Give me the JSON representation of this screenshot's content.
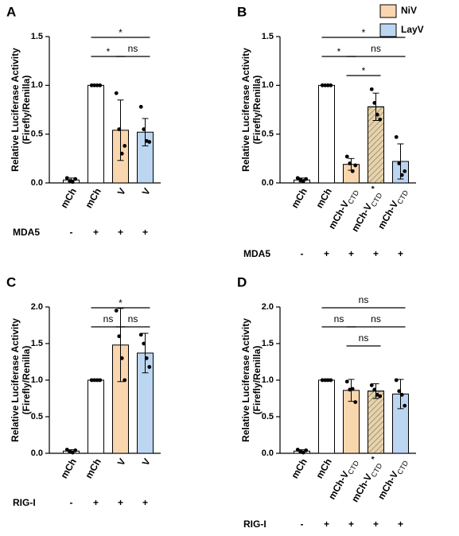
{
  "chart_data": [
    {
      "type": "bar",
      "panel": "A",
      "ylabel": [
        "Relative Luciferase Activity",
        "(Firefly/Renilla)"
      ],
      "categories": [
        "mCh",
        "mCh",
        "V",
        "V"
      ],
      "values": [
        0.03,
        1.0,
        0.54,
        0.52
      ],
      "errors": [
        0.02,
        0,
        0.31,
        0.14
      ],
      "points": [
        [
          0.05,
          0.02,
          0.01,
          0.04
        ],
        [
          1,
          1,
          1,
          1
        ],
        [
          0.92,
          0.55,
          0.3,
          0.38
        ],
        [
          0.78,
          0.55,
          0.43,
          0.42
        ]
      ],
      "colors": [
        "#ffffff",
        "#ffffff",
        "#fad6ae",
        "#bcd6f2"
      ],
      "hatch": [
        false,
        false,
        false,
        false
      ],
      "ylim": [
        0,
        1.5
      ],
      "yticks": [
        {
          "value": 0,
          "label": "0.0"
        },
        0.5,
        {
          "value": 1,
          "label": "1.0"
        },
        1.5
      ],
      "condition": {
        "label": "MDA5",
        "signs": [
          "-",
          "+",
          "+",
          "+"
        ]
      },
      "brackets": [
        {
          "from": 1,
          "to": 3,
          "label": "*"
        },
        {
          "from": 1,
          "to": 2,
          "label": "*"
        },
        {
          "from": 2,
          "to": 3,
          "label": "ns"
        }
      ]
    },
    {
      "type": "bar",
      "panel": "B",
      "ylabel": [
        "Relative Luciferase Activity",
        "(Firefly/Renilla)"
      ],
      "categories": [
        "mCh",
        "mCh",
        {
          "label": "mCh-V",
          "subscript": "CTD"
        },
        {
          "label": "mCh-V",
          "subscript": "CTD",
          "suffix": "*"
        },
        {
          "label": "mCh-V",
          "subscript": "CTD"
        }
      ],
      "values": [
        0.03,
        1.0,
        0.19,
        0.78,
        0.22
      ],
      "errors": [
        0.02,
        0,
        0.06,
        0.14,
        0.18
      ],
      "points": [
        [
          0.05,
          0.03,
          0.02,
          0.04
        ],
        [
          1,
          1,
          1,
          1
        ],
        [
          0.27,
          0.2,
          0.12,
          0.18
        ],
        [
          0.96,
          0.82,
          0.7,
          0.65
        ],
        [
          0.47,
          0.2,
          0.08,
          0.12
        ]
      ],
      "colors": [
        "#ffffff",
        "#ffffff",
        "#fad6ae",
        "#e6d3ad",
        "#bcd6f2"
      ],
      "hatch": [
        false,
        false,
        false,
        true,
        false
      ],
      "ylim": [
        0,
        1.5
      ],
      "yticks": [
        {
          "value": 0,
          "label": "0.0"
        },
        0.5,
        {
          "value": 1,
          "label": "1.0"
        },
        1.5
      ],
      "condition": {
        "label": "MDA5",
        "signs": [
          "-",
          "+",
          "+",
          "+",
          "+"
        ]
      },
      "brackets": [
        {
          "from": 1,
          "to": 4,
          "label": "*"
        },
        {
          "from": 1,
          "to": 2,
          "label": "*"
        },
        {
          "from": 2,
          "to": 4,
          "label": "ns"
        },
        {
          "from": 2,
          "to": 3,
          "label": "*"
        }
      ],
      "legend": [
        {
          "name": "NiV",
          "color": "#fad6ae"
        },
        {
          "name": "LayV",
          "color": "#bcd6f2"
        }
      ]
    },
    {
      "type": "bar",
      "panel": "C",
      "ylabel": [
        "Relative Luciferase Activity",
        "(Firefly/Renilla)"
      ],
      "categories": [
        "mCh",
        "mCh",
        "V",
        "V"
      ],
      "values": [
        0.03,
        1.0,
        1.48,
        1.37
      ],
      "errors": [
        0.02,
        0,
        0.5,
        0.27
      ],
      "points": [
        [
          0.05,
          0.02,
          0.01,
          0.04
        ],
        [
          1,
          1,
          1,
          1
        ],
        [
          1.95,
          1.6,
          1.3,
          1.0
        ],
        [
          1.62,
          1.5,
          1.3,
          1.18
        ]
      ],
      "colors": [
        "#ffffff",
        "#ffffff",
        "#fad6ae",
        "#bcd6f2"
      ],
      "hatch": [
        false,
        false,
        false,
        false
      ],
      "ylim": [
        0,
        2
      ],
      "yticks": [
        {
          "value": 0,
          "label": "0.0"
        },
        0.5,
        {
          "value": 1,
          "label": "1.0"
        },
        1.5,
        {
          "value": 2,
          "label": "2.0"
        }
      ],
      "condition": {
        "label": "RIG-I",
        "signs": [
          "-",
          "+",
          "+",
          "+"
        ]
      },
      "brackets": [
        {
          "from": 1,
          "to": 3,
          "label": "*"
        },
        {
          "from": 1,
          "to": 2,
          "label": "ns"
        },
        {
          "from": 2,
          "to": 3,
          "label": "ns"
        }
      ]
    },
    {
      "type": "bar",
      "panel": "D",
      "ylabel": [
        "Relative Luciferase Activity",
        "(Firefly/Renilla)"
      ],
      "categories": [
        "mCh",
        "mCh",
        {
          "label": "mCh-V",
          "subscript": "CTD"
        },
        {
          "label": "mCh-V",
          "subscript": "CTD",
          "suffix": "*"
        },
        {
          "label": "mCh-V",
          "subscript": "CTD"
        }
      ],
      "values": [
        0.03,
        1.0,
        0.86,
        0.85,
        0.81
      ],
      "errors": [
        0.02,
        0,
        0.15,
        0.1,
        0.2
      ],
      "points": [
        [
          0.05,
          0.02,
          0.01,
          0.04
        ],
        [
          1,
          1,
          1,
          1
        ],
        [
          0.98,
          0.87,
          0.88,
          0.7
        ],
        [
          0.93,
          0.87,
          0.8,
          0.78
        ],
        [
          1.0,
          0.85,
          0.8,
          0.65
        ]
      ],
      "colors": [
        "#ffffff",
        "#ffffff",
        "#fad6ae",
        "#e6d3ad",
        "#bcd6f2"
      ],
      "hatch": [
        false,
        false,
        false,
        true,
        false
      ],
      "ylim": [
        0,
        2
      ],
      "yticks": [
        {
          "value": 0,
          "label": "0.0"
        },
        0.5,
        {
          "value": 1,
          "label": "1.0"
        },
        1.5,
        {
          "value": 2,
          "label": "2.0"
        }
      ],
      "condition": {
        "label": "RIG-I",
        "signs": [
          "-",
          "+",
          "+",
          "+",
          "+"
        ]
      },
      "brackets": [
        {
          "from": 1,
          "to": 4,
          "label": "ns"
        },
        {
          "from": 1,
          "to": 2,
          "label": "ns"
        },
        {
          "from": 2,
          "to": 4,
          "label": "ns"
        },
        {
          "from": 2,
          "to": 3,
          "label": "ns"
        }
      ]
    }
  ]
}
